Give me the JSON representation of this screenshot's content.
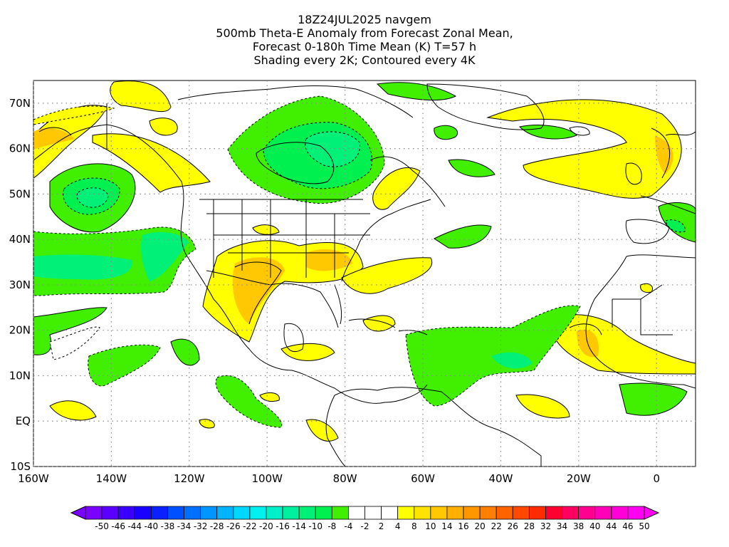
{
  "title": {
    "line1": "18Z24JUL2025 navgem",
    "line2": "500mb Theta-E Anomaly from Forecast Zonal Mean,",
    "line3": "Forecast 0-180h Time Mean (K) T=57 h",
    "line4": "Shading every 2K; Contoured every 4K"
  },
  "map": {
    "projection": "equirectangular",
    "lon_range": [
      -160,
      10
    ],
    "lat_range": [
      -10,
      75
    ],
    "grid": "dotted",
    "lat_ticks": [
      {
        "lat": 70,
        "label": "70N"
      },
      {
        "lat": 60,
        "label": "60N"
      },
      {
        "lat": 50,
        "label": "50N"
      },
      {
        "lat": 40,
        "label": "40N"
      },
      {
        "lat": 30,
        "label": "30N"
      },
      {
        "lat": 20,
        "label": "20N"
      },
      {
        "lat": 10,
        "label": "10N"
      },
      {
        "lat": 0,
        "label": "EQ"
      },
      {
        "lat": -10,
        "label": "10S"
      }
    ],
    "lon_ticks": [
      {
        "lon": -160,
        "label": "160W"
      },
      {
        "lon": -140,
        "label": "140W"
      },
      {
        "lon": -120,
        "label": "120W"
      },
      {
        "lon": -100,
        "label": "100W"
      },
      {
        "lon": -80,
        "label": "80W"
      },
      {
        "lon": -60,
        "label": "60W"
      },
      {
        "lon": -40,
        "label": "40W"
      },
      {
        "lon": -20,
        "label": "20W"
      },
      {
        "lon": 0,
        "label": "0"
      }
    ]
  },
  "colorbar": {
    "labels": [
      "-50",
      "-46",
      "-44",
      "-40",
      "-38",
      "-34",
      "-32",
      "-28",
      "-26",
      "-22",
      "-20",
      "-16",
      "-14",
      "-10",
      "-8",
      "-4",
      "-2",
      "2",
      "4",
      "8",
      "10",
      "14",
      "16",
      "20",
      "22",
      "26",
      "28",
      "32",
      "34",
      "38",
      "40",
      "44",
      "46",
      "50"
    ],
    "colors": [
      "#7a00ff",
      "#5a00ff",
      "#3a00ff",
      "#1a00ff",
      "#0a20ff",
      "#0050ff",
      "#0070ff",
      "#0095ff",
      "#00b4ff",
      "#00d8ff",
      "#00f0f0",
      "#00f0c8",
      "#00f0a0",
      "#00f078",
      "#00f050",
      "#40f000",
      "#ffffff",
      "#ffffff",
      "#ffffff",
      "#ffff00",
      "#ffe400",
      "#ffc800",
      "#ffb000",
      "#ff9800",
      "#ff8000",
      "#ff6400",
      "#ff4800",
      "#ff2c00",
      "#ff0030",
      "#ff0060",
      "#ff0090",
      "#ff00b8",
      "#ff00d8",
      "#ff00f0"
    ]
  },
  "chart_data": {
    "type": "heatmap",
    "title": "500mb Theta-E Anomaly from Forecast Zonal Mean, Forecast 0-180h Time Mean (K) T=57 h",
    "unit": "K",
    "contour_interval_K": 4,
    "shading_interval_K": 2,
    "features": [
      {
        "region": "Northeast Pacific (~145W, 49N)",
        "anomaly_K": -10,
        "sign": "negative"
      },
      {
        "region": "Hudson Bay / Labrador (~87W, 60N)",
        "anomaly_K": -12,
        "sign": "negative"
      },
      {
        "region": "Subtropical East Pacific (~150W-100W, 25N-40N)",
        "anomaly_K": -8,
        "sign": "negative"
      },
      {
        "region": "Tropical Atlantic (~60W-20W, 10N-20N)",
        "anomaly_K": -8,
        "sign": "negative"
      },
      {
        "region": "Gulf of Alaska coast (~130W, 58N)",
        "anomaly_K": 6,
        "sign": "positive"
      },
      {
        "region": "Northern Mexico / Southwest US (~105W, 28N)",
        "anomaly_K": 10,
        "sign": "positive"
      },
      {
        "region": "Southeast US (~85W, 35N)",
        "anomaly_K": 8,
        "sign": "positive"
      },
      {
        "region": "North Atlantic arc (~50W-0, 50N-68N)",
        "anomaly_K": 6,
        "sign": "positive"
      },
      {
        "region": "West Africa coast (~18W, 15N)",
        "anomaly_K": 8,
        "sign": "positive"
      },
      {
        "region": "Alaska / Bering (~155W, 60N)",
        "anomaly_K": 8,
        "sign": "positive"
      }
    ]
  }
}
